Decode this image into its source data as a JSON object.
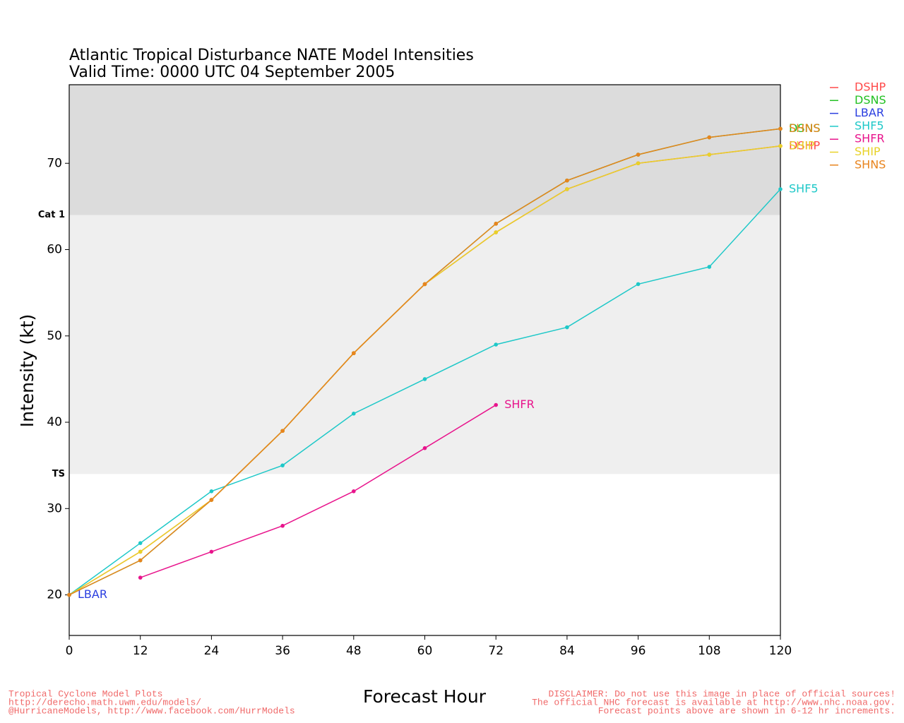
{
  "chart_data": {
    "type": "line",
    "title": "Atlantic Tropical Disturbance NATE Model Intensities",
    "subtitle": "Valid Time: 0000 UTC 04 September 2005",
    "x_label": "Forecast Hour",
    "y_label": "Intensity (kt)",
    "x": [
      0,
      12,
      24,
      36,
      48,
      60,
      72,
      84,
      96,
      108,
      120
    ],
    "xlim": [
      0,
      120
    ],
    "xticks": [
      0,
      12,
      24,
      36,
      48,
      60,
      72,
      84,
      96,
      108,
      120
    ],
    "ylim": [
      15.3,
      79.1
    ],
    "yticks": [
      20,
      30,
      40,
      50,
      60,
      70
    ],
    "bands": [
      {
        "label": "Cat 1",
        "value": 64
      },
      {
        "label": "TS",
        "value": 34
      }
    ],
    "series": [
      {
        "name": "DSHP",
        "color": "#ff4a4a",
        "values": [
          20,
          25,
          31,
          39,
          48,
          56,
          62,
          67,
          70,
          71,
          72
        ]
      },
      {
        "name": "DSNS",
        "color": "#22c022",
        "values": [
          20,
          24,
          31,
          39,
          48,
          56,
          63,
          68,
          71,
          73,
          74
        ]
      },
      {
        "name": "LBAR",
        "color": "#2a3ee0",
        "values": [
          20,
          null,
          null,
          null,
          null,
          null,
          null,
          null,
          null,
          null,
          null
        ]
      },
      {
        "name": "SHF5",
        "color": "#1ec8c8",
        "values": [
          20,
          26,
          32,
          35,
          41,
          45,
          49,
          51,
          56,
          58,
          67
        ]
      },
      {
        "name": "SHFR",
        "color": "#e8148c",
        "values": [
          null,
          22,
          25,
          28,
          32,
          37,
          42,
          null,
          null,
          null,
          null
        ]
      },
      {
        "name": "SHIP",
        "color": "#e8d228",
        "values": [
          20,
          25,
          31,
          39,
          48,
          56,
          62,
          67,
          70,
          71,
          72
        ]
      },
      {
        "name": "SHNS",
        "color": "#e8841e",
        "values": [
          20,
          24,
          31,
          39,
          48,
          56,
          63,
          68,
          71,
          73,
          74
        ]
      }
    ],
    "footer_left": [
      "Tropical Cyclone Model Plots",
      "http://derecho.math.uwm.edu/models/",
      "@HurricaneModels, http://www.facebook.com/HurrModels"
    ],
    "footer_right": [
      "DISCLAIMER: Do not use this image in place of official sources!",
      "The official NHC forecast is available at http://www.nhc.noaa.gov.",
      "Forecast points above are shown in 6-12 hr increments."
    ]
  }
}
